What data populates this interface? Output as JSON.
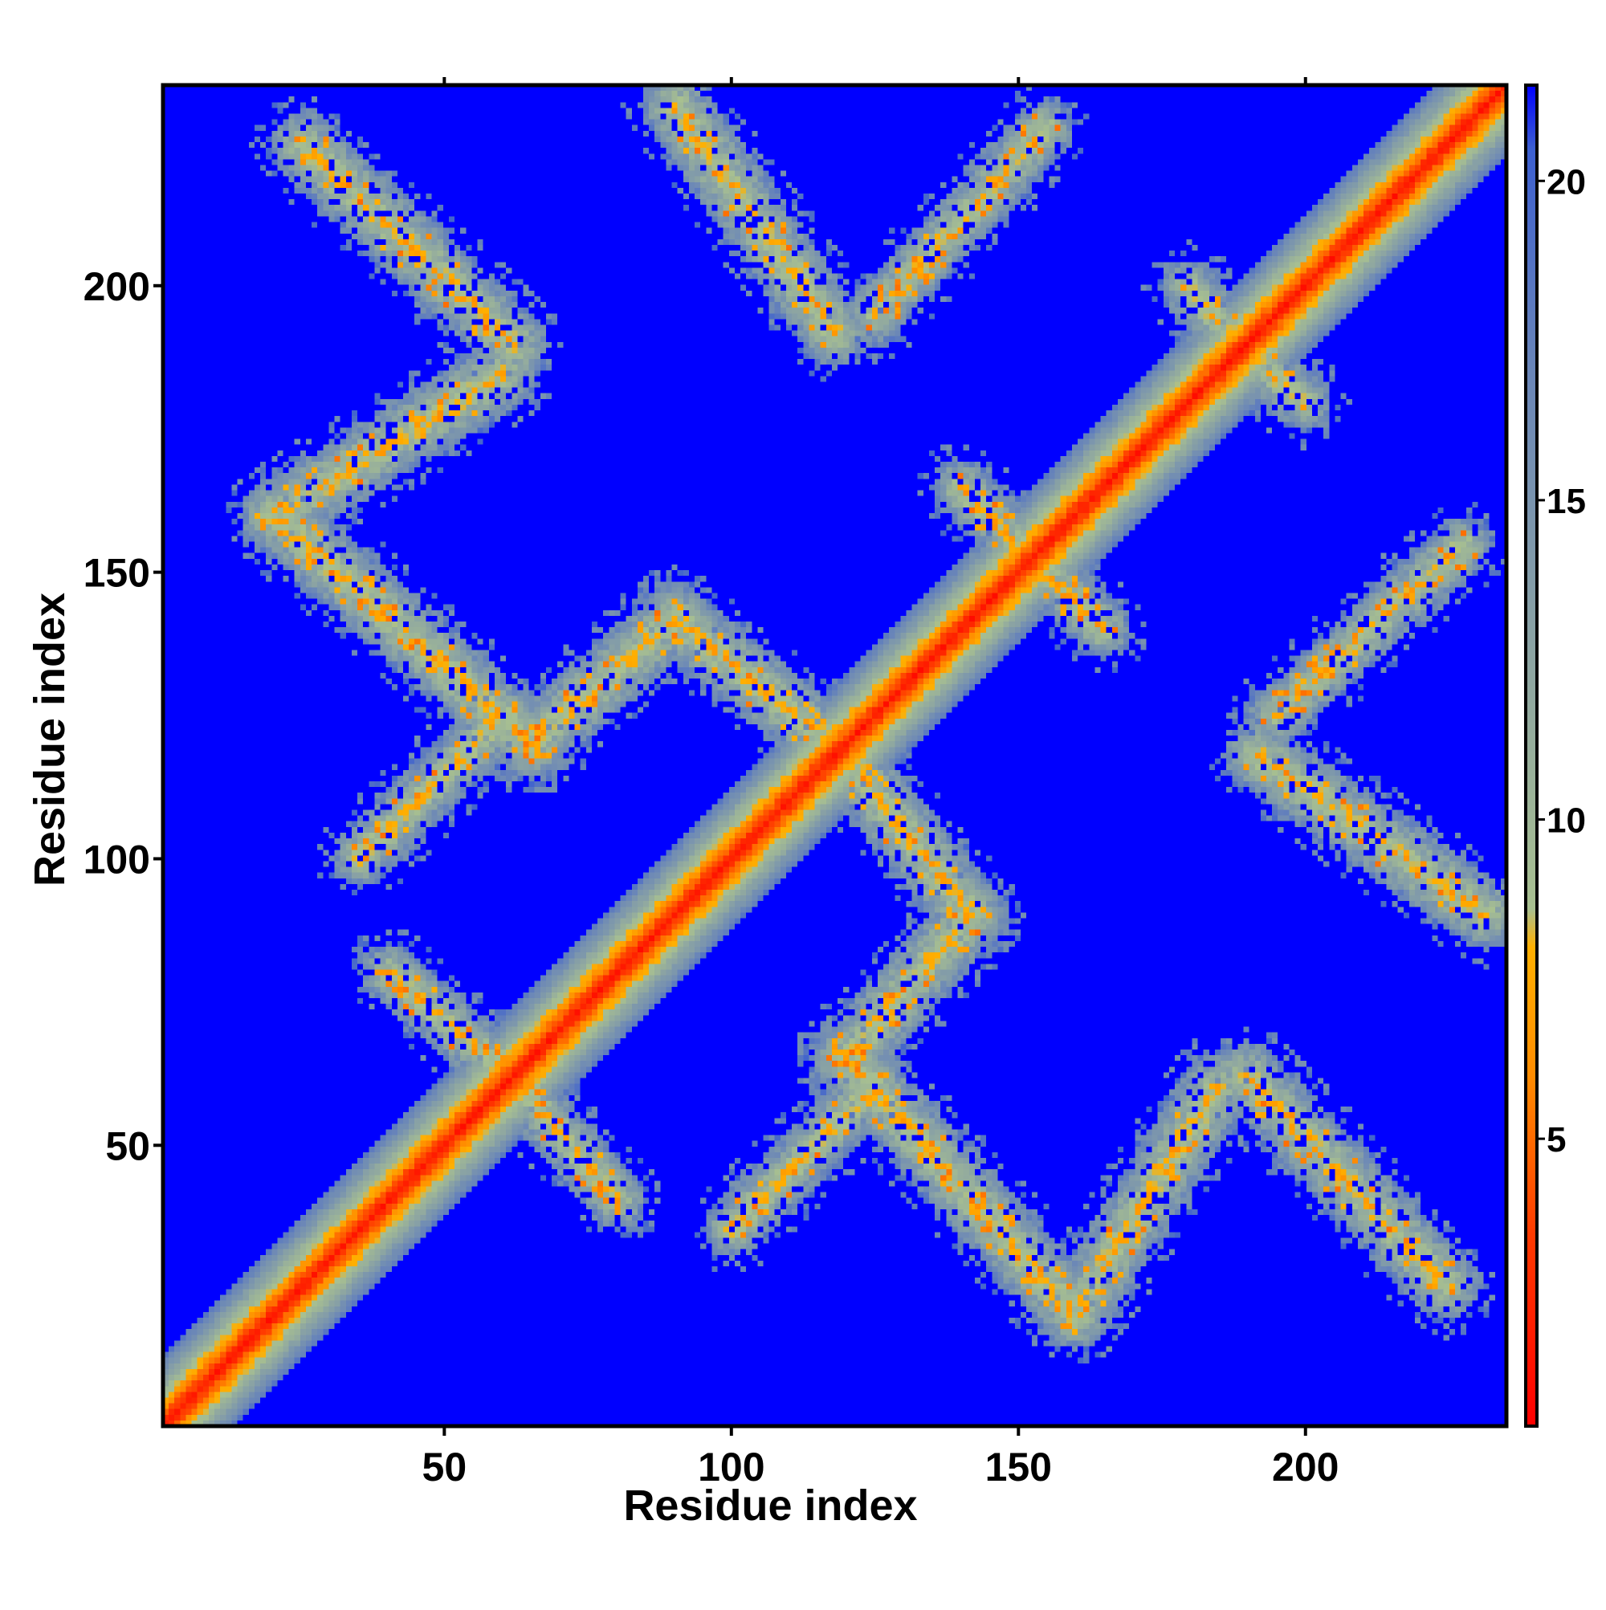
{
  "chart_data": {
    "type": "heatmap",
    "title": "",
    "xlabel": "Residue index",
    "ylabel": "Residue index",
    "x_range": [
      1,
      235
    ],
    "y_range": [
      1,
      235
    ],
    "x_ticks": [
      50,
      100,
      150,
      200
    ],
    "y_ticks": [
      50,
      100,
      150,
      200
    ],
    "n_residues": 235,
    "value_range": [
      0.5,
      21.5
    ],
    "colorbar": {
      "ticks": [
        5,
        10,
        15,
        20
      ],
      "range": [
        0.5,
        21.5
      ],
      "stops": [
        {
          "value": 0.5,
          "color": "#ff0000"
        },
        {
          "value": 3.5,
          "color": "#ff3a00"
        },
        {
          "value": 6.0,
          "color": "#ff8c00"
        },
        {
          "value": 8.0,
          "color": "#ffb000"
        },
        {
          "value": 8.6,
          "color": "#a8c090"
        },
        {
          "value": 12.0,
          "color": "#90a8a0"
        },
        {
          "value": 17.0,
          "color": "#6a86b8"
        },
        {
          "value": 20.5,
          "color": "#3c5fd0"
        },
        {
          "value": 21.5,
          "color": "#0000ff"
        }
      ]
    },
    "background_color": "#0000ff",
    "description_bands": [
      {
        "kind": "diagonal",
        "x0": 1,
        "y0": 1,
        "x1": 235,
        "y1": 235,
        "half_width": 9
      },
      {
        "kind": "anti",
        "x0": 25,
        "y0": 225,
        "x1": 62,
        "y1": 190,
        "half_width": 6
      },
      {
        "kind": "anti",
        "x0": 90,
        "y0": 232,
        "x1": 118,
        "y1": 192,
        "half_width": 6
      },
      {
        "kind": "diag",
        "x0": 125,
        "y0": 195,
        "x1": 155,
        "y1": 228,
        "half_width": 5
      },
      {
        "kind": "diag",
        "x0": 20,
        "y0": 160,
        "x1": 60,
        "y1": 185,
        "half_width": 6
      },
      {
        "kind": "anti",
        "x0": 20,
        "y0": 160,
        "x1": 65,
        "y1": 120,
        "half_width": 6
      },
      {
        "kind": "diag",
        "x0": 35,
        "y0": 100,
        "x1": 60,
        "y1": 125,
        "half_width": 5
      },
      {
        "kind": "anti",
        "x0": 40,
        "y0": 80,
        "x1": 75,
        "y1": 50,
        "half_width": 5
      },
      {
        "kind": "diag",
        "x0": 65,
        "y0": 120,
        "x1": 90,
        "y1": 142,
        "half_width": 6
      },
      {
        "kind": "anti",
        "x0": 90,
        "y0": 142,
        "x1": 120,
        "y1": 118,
        "half_width": 6
      },
      {
        "kind": "anti",
        "x0": 120,
        "y0": 118,
        "x1": 140,
        "y1": 100,
        "half_width": 6
      },
      {
        "kind": "diag",
        "x0": 95,
        "y0": 30,
        "x1": 120,
        "y1": 58,
        "half_width": 5
      },
      {
        "kind": "anti",
        "x0": 120,
        "y0": 58,
        "x1": 150,
        "y1": 25,
        "half_width": 6
      },
      {
        "kind": "diag",
        "x0": 150,
        "y0": 25,
        "x1": 180,
        "y1": 58,
        "half_width": 6
      },
      {
        "kind": "anti",
        "x0": 125,
        "y0": 75,
        "x1": 145,
        "y1": 98,
        "half_width": 6
      },
      {
        "kind": "anti",
        "x0": 195,
        "y0": 58,
        "x1": 225,
        "y1": 32,
        "half_width": 6
      },
      {
        "kind": "anti",
        "x0": 195,
        "y0": 118,
        "x1": 225,
        "y1": 92,
        "half_width": 6
      },
      {
        "kind": "diag",
        "x0": 205,
        "y0": 120,
        "x1": 225,
        "y1": 148,
        "half_width": 5
      },
      {
        "kind": "anti",
        "x0": 140,
        "y0": 165,
        "x1": 170,
        "y1": 135,
        "half_width": 5
      },
      {
        "kind": "anti",
        "x0": 180,
        "y0": 200,
        "x1": 205,
        "y1": 170,
        "half_width": 5
      }
    ]
  }
}
